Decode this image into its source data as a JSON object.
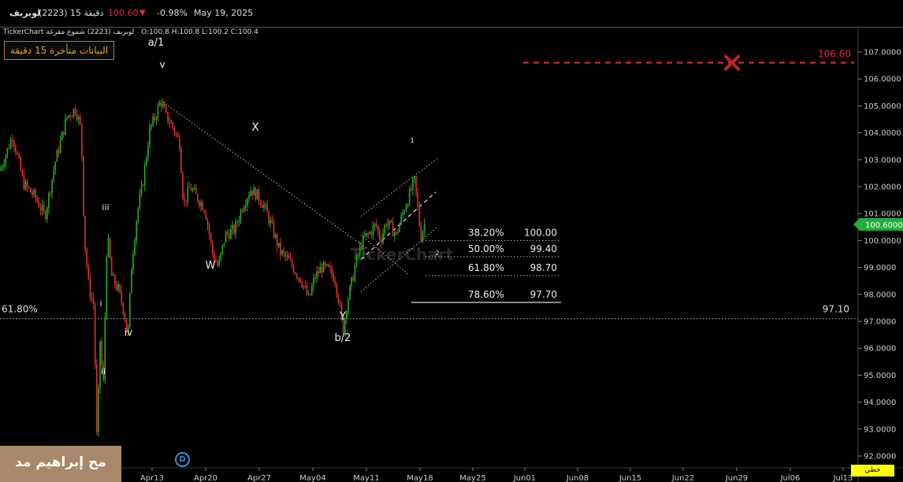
{
  "header": {
    "symbol": "لوبريف",
    "code": "(2223)",
    "interval": "15 دقيقة",
    "price": "100.60",
    "change": "-0.98%",
    "date": "May 19, 2025",
    "colors": {
      "price": "#e0303a",
      "down_arrow": "#e0303a"
    },
    "down_icon": "triangle-down-icon"
  },
  "info_bar": {
    "brand": "TickerChart",
    "instrument": "لوبريف (2223) شموع مفرغة",
    "ohlc": "O:100.8  H:100.8  L:100.2  C:100.4"
  },
  "delay_notice": "البيانات متأخرة 15 دقيقة",
  "watermark_text": "مح إبراهيم مد",
  "logo_text": "TickerChart",
  "dividend_badge": "D",
  "mode_label": "خطي",
  "chart_data": {
    "type": "candlestick",
    "y_range": [
      91.85,
      107.3
    ],
    "y_ticks": [
      "107.0000",
      "106.0000",
      "105.0000",
      "104.0000",
      "103.0000",
      "102.0000",
      "101.0000",
      "100.0000",
      "99.0000",
      "98.0000",
      "97.0000",
      "96.0000",
      "95.0000",
      "94.0000",
      "93.0000",
      "92.0000"
    ],
    "x_ticks": [
      "Apr13",
      "Apr20",
      "Apr27",
      "May04",
      "May11",
      "May18",
      "May25",
      "Jun01",
      "Jun08",
      "Jun15",
      "Jun22",
      "Jun29",
      "Jul06",
      "Jul13"
    ],
    "last_price_label": "100.6000",
    "colors": {
      "up": "#22b022",
      "down": "#e03030",
      "target": "#e0303a",
      "last_price": "#1fae3c"
    },
    "path": [
      [
        0,
        102.6
      ],
      [
        16,
        103.9
      ],
      [
        30,
        102.1
      ],
      [
        45,
        101.6
      ],
      [
        57,
        100.9
      ],
      [
        70,
        102.9
      ],
      [
        85,
        104.6
      ],
      [
        96,
        104.9
      ],
      [
        103,
        104.1
      ],
      [
        107,
        100.1
      ],
      [
        113,
        98.2
      ],
      [
        119,
        97.6
      ],
      [
        123,
        92.5
      ],
      [
        127,
        96.3
      ],
      [
        131,
        94.5
      ],
      [
        136,
        100.3
      ],
      [
        142,
        98.6
      ],
      [
        150,
        98.2
      ],
      [
        158,
        97.3
      ],
      [
        162,
        96.3
      ],
      [
        167,
        99.1
      ],
      [
        174,
        101.0
      ],
      [
        181,
        102.1
      ],
      [
        190,
        104.1
      ],
      [
        197,
        104.6
      ],
      [
        204,
        105.2
      ],
      [
        211,
        104.6
      ],
      [
        218,
        104.3
      ],
      [
        224,
        103.9
      ],
      [
        228,
        103.6
      ],
      [
        233,
        101.3
      ],
      [
        241,
        102.0
      ],
      [
        250,
        101.6
      ],
      [
        260,
        101.2
      ],
      [
        270,
        99.5
      ],
      [
        277,
        99.0
      ],
      [
        286,
        100.2
      ],
      [
        298,
        100.4
      ],
      [
        308,
        101.3
      ],
      [
        318,
        101.9
      ],
      [
        326,
        101.7
      ],
      [
        335,
        101.3
      ],
      [
        345,
        100.5
      ],
      [
        355,
        99.6
      ],
      [
        365,
        99.3
      ],
      [
        374,
        98.9
      ],
      [
        383,
        98.5
      ],
      [
        392,
        97.8
      ],
      [
        399,
        98.6
      ],
      [
        408,
        99.0
      ],
      [
        417,
        98.9
      ],
      [
        425,
        98.6
      ],
      [
        431,
        97.6
      ],
      [
        435,
        96.6
      ],
      [
        440,
        97.6
      ],
      [
        446,
        98.4
      ],
      [
        452,
        99.2
      ],
      [
        458,
        99.8
      ],
      [
        463,
        100.1
      ],
      [
        470,
        100.3
      ],
      [
        477,
        100.6
      ],
      [
        483,
        100.0
      ],
      [
        490,
        100.7
      ],
      [
        496,
        100.5
      ],
      [
        503,
        100.2
      ],
      [
        510,
        100.9
      ],
      [
        517,
        101.5
      ],
      [
        522,
        101.9
      ],
      [
        526,
        102.2
      ],
      [
        530,
        101.3
      ],
      [
        534,
        100.1
      ],
      [
        538,
        100.6
      ],
      [
        541,
        100.6
      ]
    ],
    "wave_labels": [
      "a/1",
      "v",
      "iii",
      "i",
      "ii",
      "iv",
      "W",
      "X",
      "Y",
      "b/2",
      "1",
      "2"
    ],
    "fib_levels": [
      {
        "percent": "38.20%",
        "value": "100.00"
      },
      {
        "percent": "50.00%",
        "value": "99.40"
      },
      {
        "percent": "61.80%",
        "value": "98.70"
      },
      {
        "percent": "78.60%",
        "value": "97.70"
      }
    ],
    "horizontal_level": {
      "percent": "61.80%",
      "value": "97.10"
    },
    "target": {
      "value": "106.60",
      "marker": "x-icon"
    }
  }
}
